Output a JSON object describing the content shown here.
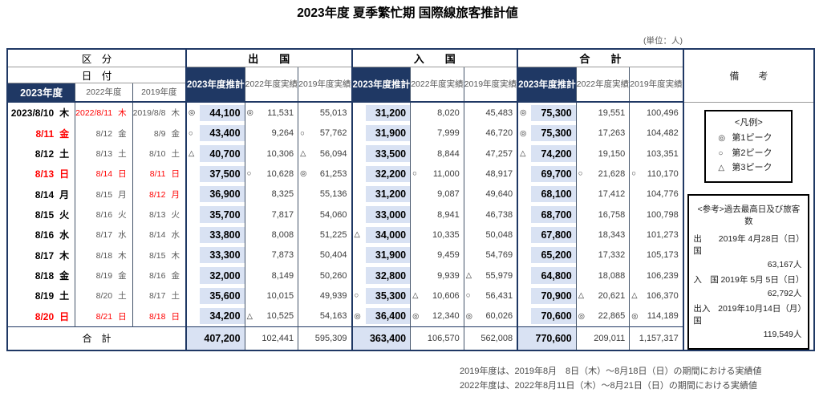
{
  "title": "2023年度 夏季繁忙期 国際線旅客推計値",
  "unit_label": "(単位：人)",
  "colors": {
    "navy": "#1f3864",
    "light_blue": "#d9e2f3",
    "red": "#ff0000",
    "gray_text": "#595959"
  },
  "header": {
    "kubun": "区　分",
    "hiduke": "日　付",
    "groups": [
      "出　　国",
      "入　　国",
      "合　　計"
    ],
    "estimate_col": "2023年度推計",
    "actual_2022_col": "2022年度実績",
    "actual_2019_col": "2019年度実績",
    "date_year_cols": [
      "2023年度",
      "2022年度",
      "2019年度"
    ],
    "biko": "備　　考"
  },
  "legend": {
    "title": "<凡例>",
    "items": [
      {
        "mark": "◎",
        "label": "第1ピーク"
      },
      {
        "mark": "○",
        "label": "第2ピーク"
      },
      {
        "mark": "△",
        "label": "第3ピーク"
      }
    ]
  },
  "reference": {
    "title": "<参考>過去最高日及び旅客数",
    "items": [
      {
        "label": "出　国",
        "date": "2019年 4月28日（日）",
        "value": "63,167人"
      },
      {
        "label": "入　国",
        "date": "2019年 5月 5日（日）",
        "value": "62,792人"
      },
      {
        "label": "出入国",
        "date": "2019年10月14日（月）",
        "value": "119,549人"
      }
    ]
  },
  "rows": [
    {
      "dates": [
        {
          "t": "2023/8/10",
          "d": "木",
          "red": false
        },
        {
          "t": "2022/8/11",
          "d": "木",
          "red": true
        },
        {
          "t": "2019/8/8",
          "d": "木",
          "red": false
        }
      ],
      "values": [
        {
          "m": "◎",
          "v": "44,100"
        },
        {
          "m": "◎",
          "v": "11,531"
        },
        {
          "m": "",
          "v": "55,013"
        },
        {
          "m": "",
          "v": "31,200"
        },
        {
          "m": "",
          "v": "8,020"
        },
        {
          "m": "",
          "v": "45,483"
        },
        {
          "m": "◎",
          "v": "75,300"
        },
        {
          "m": "",
          "v": "19,551"
        },
        {
          "m": "",
          "v": "100,496"
        }
      ]
    },
    {
      "dates": [
        {
          "t": "8/11",
          "d": "金",
          "red": true
        },
        {
          "t": "8/12",
          "d": "金",
          "red": false
        },
        {
          "t": "8/9",
          "d": "金",
          "red": false
        }
      ],
      "values": [
        {
          "m": "○",
          "v": "43,400"
        },
        {
          "m": "",
          "v": "9,264"
        },
        {
          "m": "○",
          "v": "57,762"
        },
        {
          "m": "",
          "v": "31,900"
        },
        {
          "m": "",
          "v": "7,999"
        },
        {
          "m": "",
          "v": "46,720"
        },
        {
          "m": "◎",
          "v": "75,300"
        },
        {
          "m": "",
          "v": "17,263"
        },
        {
          "m": "",
          "v": "104,482"
        }
      ]
    },
    {
      "dates": [
        {
          "t": "8/12",
          "d": "土",
          "red": false
        },
        {
          "t": "8/13",
          "d": "土",
          "red": false
        },
        {
          "t": "8/10",
          "d": "土",
          "red": false
        }
      ],
      "values": [
        {
          "m": "△",
          "v": "40,700"
        },
        {
          "m": "",
          "v": "10,306"
        },
        {
          "m": "△",
          "v": "56,094"
        },
        {
          "m": "",
          "v": "33,500"
        },
        {
          "m": "",
          "v": "8,844"
        },
        {
          "m": "",
          "v": "47,257"
        },
        {
          "m": "△",
          "v": "74,200"
        },
        {
          "m": "",
          "v": "19,150"
        },
        {
          "m": "",
          "v": "103,351"
        }
      ]
    },
    {
      "dates": [
        {
          "t": "8/13",
          "d": "日",
          "red": true
        },
        {
          "t": "8/14",
          "d": "日",
          "red": true
        },
        {
          "t": "8/11",
          "d": "日",
          "red": true
        }
      ],
      "values": [
        {
          "m": "",
          "v": "37,500"
        },
        {
          "m": "○",
          "v": "10,628"
        },
        {
          "m": "◎",
          "v": "61,253"
        },
        {
          "m": "",
          "v": "32,200"
        },
        {
          "m": "○",
          "v": "11,000"
        },
        {
          "m": "",
          "v": "48,917"
        },
        {
          "m": "",
          "v": "69,700"
        },
        {
          "m": "○",
          "v": "21,628"
        },
        {
          "m": "○",
          "v": "110,170"
        }
      ]
    },
    {
      "dates": [
        {
          "t": "8/14",
          "d": "月",
          "red": false
        },
        {
          "t": "8/15",
          "d": "月",
          "red": false
        },
        {
          "t": "8/12",
          "d": "月",
          "red": true
        }
      ],
      "values": [
        {
          "m": "",
          "v": "36,900"
        },
        {
          "m": "",
          "v": "8,325"
        },
        {
          "m": "",
          "v": "55,136"
        },
        {
          "m": "",
          "v": "31,200"
        },
        {
          "m": "",
          "v": "9,087"
        },
        {
          "m": "",
          "v": "49,640"
        },
        {
          "m": "",
          "v": "68,100"
        },
        {
          "m": "",
          "v": "17,412"
        },
        {
          "m": "",
          "v": "104,776"
        }
      ]
    },
    {
      "dates": [
        {
          "t": "8/15",
          "d": "火",
          "red": false
        },
        {
          "t": "8/16",
          "d": "火",
          "red": false
        },
        {
          "t": "8/13",
          "d": "火",
          "red": false
        }
      ],
      "values": [
        {
          "m": "",
          "v": "35,700"
        },
        {
          "m": "",
          "v": "7,817"
        },
        {
          "m": "",
          "v": "54,060"
        },
        {
          "m": "",
          "v": "33,000"
        },
        {
          "m": "",
          "v": "8,941"
        },
        {
          "m": "",
          "v": "46,738"
        },
        {
          "m": "",
          "v": "68,700"
        },
        {
          "m": "",
          "v": "16,758"
        },
        {
          "m": "",
          "v": "100,798"
        }
      ]
    },
    {
      "dates": [
        {
          "t": "8/16",
          "d": "水",
          "red": false
        },
        {
          "t": "8/17",
          "d": "水",
          "red": false
        },
        {
          "t": "8/14",
          "d": "水",
          "red": false
        }
      ],
      "values": [
        {
          "m": "",
          "v": "33,800"
        },
        {
          "m": "",
          "v": "8,008"
        },
        {
          "m": "",
          "v": "51,225"
        },
        {
          "m": "△",
          "v": "34,000"
        },
        {
          "m": "",
          "v": "10,335"
        },
        {
          "m": "",
          "v": "50,048"
        },
        {
          "m": "",
          "v": "67,800"
        },
        {
          "m": "",
          "v": "18,343"
        },
        {
          "m": "",
          "v": "101,273"
        }
      ]
    },
    {
      "dates": [
        {
          "t": "8/17",
          "d": "木",
          "red": false
        },
        {
          "t": "8/18",
          "d": "木",
          "red": false
        },
        {
          "t": "8/15",
          "d": "木",
          "red": false
        }
      ],
      "values": [
        {
          "m": "",
          "v": "33,300"
        },
        {
          "m": "",
          "v": "7,873"
        },
        {
          "m": "",
          "v": "50,404"
        },
        {
          "m": "",
          "v": "31,900"
        },
        {
          "m": "",
          "v": "9,459"
        },
        {
          "m": "",
          "v": "54,769"
        },
        {
          "m": "",
          "v": "65,200"
        },
        {
          "m": "",
          "v": "17,332"
        },
        {
          "m": "",
          "v": "105,173"
        }
      ]
    },
    {
      "dates": [
        {
          "t": "8/18",
          "d": "金",
          "red": false
        },
        {
          "t": "8/19",
          "d": "金",
          "red": false
        },
        {
          "t": "8/16",
          "d": "金",
          "red": false
        }
      ],
      "values": [
        {
          "m": "",
          "v": "32,000"
        },
        {
          "m": "",
          "v": "8,149"
        },
        {
          "m": "",
          "v": "50,260"
        },
        {
          "m": "",
          "v": "32,800"
        },
        {
          "m": "",
          "v": "9,939"
        },
        {
          "m": "△",
          "v": "55,979"
        },
        {
          "m": "",
          "v": "64,800"
        },
        {
          "m": "",
          "v": "18,088"
        },
        {
          "m": "",
          "v": "106,239"
        }
      ]
    },
    {
      "dates": [
        {
          "t": "8/19",
          "d": "土",
          "red": false
        },
        {
          "t": "8/20",
          "d": "土",
          "red": false
        },
        {
          "t": "8/17",
          "d": "土",
          "red": false
        }
      ],
      "values": [
        {
          "m": "",
          "v": "35,600"
        },
        {
          "m": "",
          "v": "10,015"
        },
        {
          "m": "",
          "v": "49,939"
        },
        {
          "m": "○",
          "v": "35,300"
        },
        {
          "m": "△",
          "v": "10,606"
        },
        {
          "m": "○",
          "v": "56,431"
        },
        {
          "m": "",
          "v": "70,900"
        },
        {
          "m": "△",
          "v": "20,621"
        },
        {
          "m": "△",
          "v": "106,370"
        }
      ]
    },
    {
      "dates": [
        {
          "t": "8/20",
          "d": "日",
          "red": true
        },
        {
          "t": "8/21",
          "d": "日",
          "red": true
        },
        {
          "t": "8/18",
          "d": "日",
          "red": true
        }
      ],
      "values": [
        {
          "m": "",
          "v": "34,200"
        },
        {
          "m": "△",
          "v": "10,525"
        },
        {
          "m": "",
          "v": "54,163"
        },
        {
          "m": "◎",
          "v": "36,400"
        },
        {
          "m": "◎",
          "v": "12,340"
        },
        {
          "m": "◎",
          "v": "60,026"
        },
        {
          "m": "",
          "v": "70,600"
        },
        {
          "m": "◎",
          "v": "22,865"
        },
        {
          "m": "◎",
          "v": "114,189"
        }
      ]
    }
  ],
  "total_row": {
    "label": "合　計",
    "values": [
      "407,200",
      "102,441",
      "595,309",
      "363,400",
      "106,570",
      "562,008",
      "770,600",
      "209,011",
      "1,157,317"
    ]
  },
  "notes": [
    "2019年度は、2019年8月　8日（木）～8月18日（日）の期間における実績値",
    "2022年度は、2022年8月11日（木）～8月21日（日）の期間における実績値"
  ]
}
